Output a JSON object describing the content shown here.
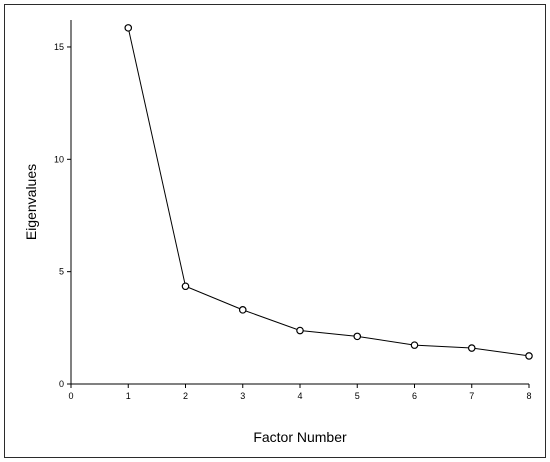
{
  "chart_data": {
    "type": "line",
    "title": "",
    "xlabel": "Factor Number",
    "ylabel": "Eigenvalues",
    "x": [
      1,
      2,
      3,
      4,
      5,
      6,
      7,
      8
    ],
    "series": [
      {
        "values": [
          15.85,
          4.35,
          3.3,
          2.38,
          2.12,
          1.73,
          1.6,
          1.25
        ]
      }
    ],
    "xlim": [
      0,
      8
    ],
    "ylim": [
      0,
      16.2
    ],
    "xticks": [
      0,
      1,
      2,
      3,
      4,
      5,
      6,
      7,
      8
    ],
    "yticks": [
      0,
      5,
      10,
      15
    ],
    "grid": false,
    "legend": "none",
    "colors": {
      "line": "#000000",
      "marker_fill": "#ffffff"
    }
  }
}
